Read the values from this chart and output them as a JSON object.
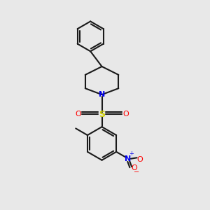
{
  "background_color": "#e8e8e8",
  "bond_color": "#1a1a1a",
  "bond_width": 1.5,
  "N_color": "#0000ee",
  "S_color": "#cccc00",
  "O_color": "#ff0000",
  "figsize": [
    3.0,
    3.0
  ],
  "dpi": 100,
  "xlim": [
    0,
    10
  ],
  "ylim": [
    0,
    10
  ]
}
